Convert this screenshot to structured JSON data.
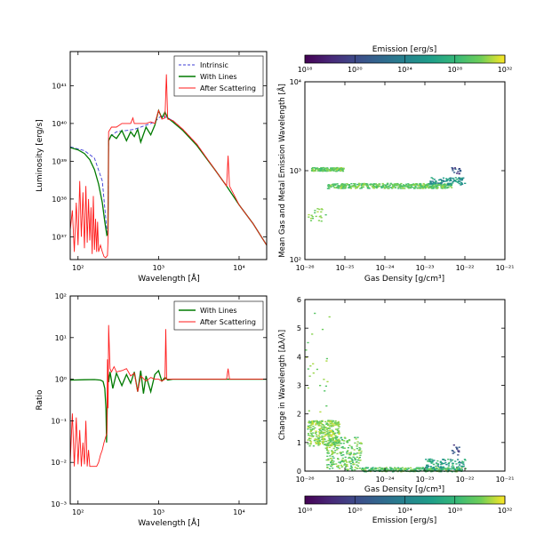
{
  "chart_data": [
    {
      "id": "luminosity",
      "type": "line",
      "xscale": "log",
      "yscale": "log",
      "xlabel": "Wavelength [Å]",
      "ylabel": "Luminosity [erg/s]",
      "xlim": [
        80,
        22000
      ],
      "ylim": [
        2.5e+36,
        8e+41
      ],
      "x_ticks": [
        {
          "v": 100,
          "label": "10²"
        },
        {
          "v": 1000,
          "label": "10³"
        },
        {
          "v": 10000,
          "label": "10⁴"
        }
      ],
      "y_ticks": [
        {
          "v": 1e+37,
          "label": "10³⁷"
        },
        {
          "v": 1e+38,
          "label": "10³⁸"
        },
        {
          "v": 1e+39,
          "label": "10³⁹"
        },
        {
          "v": 1e+40,
          "label": "10⁴⁰"
        },
        {
          "v": 1e+41,
          "label": "10⁴¹"
        }
      ],
      "legend_position": "top-right",
      "series": [
        {
          "name": "Intrinsic",
          "color": "#3b3bd6",
          "dash": true,
          "x": [
            80,
            120,
            160,
            200,
            228,
            235,
            240,
            300,
            400,
            500,
            600,
            700,
            800,
            900,
            1000,
            1100,
            1200,
            1500,
            2000,
            3000,
            5000,
            7000,
            10000,
            15000,
            22000
          ],
          "y": [
            2.4e+39,
            1.9e+39,
            1.2e+39,
            3e+38,
            1.5e+37,
            1.2e+37,
            4.2e+39,
            6e+39,
            6.5e+39,
            7e+39,
            8e+39,
            9e+39,
            1e+40,
            1.1e+40,
            1.4e+40,
            1.6e+40,
            1.5e+40,
            1.2e+40,
            7e+39,
            2.8e+39,
            6e+38,
            2.2e+38,
            7e+37,
            2.2e+37,
            6e+36
          ]
        },
        {
          "name": "With Lines",
          "color": "#007a00",
          "dash": false,
          "x": [
            80,
            100,
            120,
            140,
            160,
            180,
            200,
            215,
            228,
            235,
            240,
            260,
            300,
            350,
            400,
            450,
            500,
            550,
            600,
            700,
            800,
            900,
            1000,
            1100,
            1200,
            1300,
            1500,
            2000,
            3000,
            5000,
            7000,
            10000,
            15000,
            22000
          ],
          "y": [
            2.3e+39,
            2e+39,
            1.6e+39,
            1.1e+39,
            6e+38,
            2.5e+38,
            8e+37,
            2.5e+37,
            1.1e+37,
            1.2e+37,
            3.5e+39,
            5e+39,
            4e+39,
            6.5e+39,
            3.5e+39,
            6e+39,
            4.5e+39,
            7e+39,
            3.2e+39,
            8e+39,
            5e+39,
            9e+39,
            2.2e+40,
            1.4e+40,
            2e+40,
            1.4e+40,
            1.1e+40,
            6.5e+39,
            2.6e+39,
            6e+38,
            2.2e+38,
            7e+37,
            2.2e+37,
            6e+36
          ]
        },
        {
          "name": "After Scattering",
          "color": "#ff1a1a",
          "dash": false,
          "x": [
            80,
            85,
            90,
            95,
            100,
            105,
            110,
            115,
            120,
            125,
            130,
            135,
            140,
            145,
            150,
            155,
            160,
            165,
            170,
            175,
            180,
            190,
            200,
            210,
            220,
            232,
            236,
            240,
            260,
            300,
            350,
            400,
            450,
            480,
            500,
            550,
            600,
            700,
            800,
            900,
            1000,
            1100,
            1200,
            1250,
            1300,
            1500,
            2000,
            3000,
            5000,
            7000,
            7300,
            7600,
            10000,
            15000,
            22000
          ],
          "y": [
            1.5e+37,
            5e+37,
            4e+36,
            8e+37,
            6e+36,
            3e+38,
            1e+37,
            1.5e+38,
            5e+36,
            2.2e+38,
            7e+36,
            1e+38,
            8e+36,
            6e+37,
            3.5e+36,
            1.2e+38,
            4.5e+36,
            3e+37,
            4e+36,
            2.5e+37,
            4e+36,
            6e+36,
            4e+36,
            3e+36,
            2.8e+36,
            3.2e+36,
            9e+36,
            6e+39,
            8e+39,
            8e+39,
            1e+40,
            1e+40,
            1e+40,
            1.4e+40,
            1e+40,
            1e+40,
            1e+40,
            1e+40,
            1.1e+40,
            1e+40,
            2.2e+40,
            1.3e+40,
            1.4e+40,
            2e+41,
            1.3e+40,
            1.2e+40,
            7e+39,
            2.8e+39,
            6e+38,
            2.2e+38,
            1.4e+39,
            2.2e+38,
            7e+37,
            2.2e+37,
            6e+36
          ]
        }
      ]
    },
    {
      "id": "emission-wavelength",
      "type": "scatter",
      "xscale": "log",
      "yscale": "log",
      "xlabel": "Gas Density [g/cm³]",
      "ylabel": "Mean Gas and Metal Emission Wavelength [Å]",
      "xlim": [
        1e-26,
        1e-21
      ],
      "ylim": [
        100,
        10000
      ],
      "x_ticks": [
        {
          "v": 1e-26,
          "label": "10⁻²⁶"
        },
        {
          "v": 1e-25,
          "label": "10⁻²⁵"
        },
        {
          "v": 1e-24,
          "label": "10⁻²⁴"
        },
        {
          "v": 1e-23,
          "label": "10⁻²³"
        },
        {
          "v": 1e-22,
          "label": "10⁻²²"
        },
        {
          "v": 1e-21,
          "label": "10⁻²¹"
        }
      ],
      "y_ticks": [
        {
          "v": 100,
          "label": "10²"
        },
        {
          "v": 1000,
          "label": "10³"
        },
        {
          "v": 10000,
          "label": "10⁴"
        }
      ],
      "colorbar": {
        "label": "Emission [erg/s]",
        "position": "top",
        "range_log10": [
          16,
          32
        ],
        "ticks": [
          {
            "v": 16,
            "label": "10¹⁶"
          },
          {
            "v": 20,
            "label": "10²⁰"
          },
          {
            "v": 24,
            "label": "10²⁴"
          },
          {
            "v": 28,
            "label": "10²⁸"
          },
          {
            "v": 32,
            "label": "10³²"
          }
        ]
      },
      "clusters": [
        {
          "note": "upper band",
          "logx": [
            -25.85,
            -25.05
          ],
          "y": [
            1000,
            1100
          ],
          "emission_log10": [
            28,
            31
          ]
        },
        {
          "note": "main band",
          "logx": [
            -25.45,
            -22.35
          ],
          "y": [
            640,
            730
          ],
          "emission_log10": [
            28,
            31
          ]
        },
        {
          "note": "band rising",
          "logx": [
            -22.9,
            -22.0
          ],
          "y": [
            700,
            850
          ],
          "emission_log10": [
            23,
            28
          ]
        },
        {
          "note": "high points",
          "logx": [
            -22.35,
            -22.1
          ],
          "y": [
            930,
            1100
          ],
          "emission_log10": [
            18,
            22
          ]
        },
        {
          "note": "low scatter",
          "logx": [
            -25.95,
            -25.5
          ],
          "y": [
            270,
            380
          ],
          "emission_log10": [
            29,
            31
          ]
        }
      ]
    },
    {
      "id": "ratio",
      "type": "line",
      "xscale": "log",
      "yscale": "log",
      "xlabel": "Wavelength [Å]",
      "ylabel": "Ratio",
      "xlim": [
        80,
        22000
      ],
      "ylim": [
        0.001,
        100
      ],
      "x_ticks": [
        {
          "v": 100,
          "label": "10²"
        },
        {
          "v": 1000,
          "label": "10³"
        },
        {
          "v": 10000,
          "label": "10⁴"
        }
      ],
      "y_ticks": [
        {
          "v": 0.001,
          "label": "10⁻³"
        },
        {
          "v": 0.01,
          "label": "10⁻²"
        },
        {
          "v": 0.1,
          "label": "10⁻¹"
        },
        {
          "v": 1,
          "label": "10⁰"
        },
        {
          "v": 10,
          "label": "10¹"
        },
        {
          "v": 100,
          "label": "10²"
        }
      ],
      "legend_position": "top-right",
      "series": [
        {
          "name": "With Lines",
          "color": "#007a00",
          "dash": false,
          "x": [
            80,
            120,
            160,
            190,
            205,
            215,
            222,
            226,
            230,
            233,
            236,
            240,
            250,
            270,
            300,
            350,
            400,
            450,
            500,
            550,
            600,
            650,
            700,
            800,
            900,
            1000,
            1100,
            1200,
            1300,
            1500,
            2000,
            5000,
            22000
          ],
          "y": [
            0.95,
            0.97,
            0.98,
            0.95,
            0.88,
            0.6,
            0.2,
            0.03,
            0.2,
            0.5,
            1.3,
            0.85,
            1.5,
            0.6,
            1.4,
            0.7,
            1.3,
            0.8,
            1.5,
            0.5,
            1.6,
            0.45,
            1.2,
            0.5,
            1.3,
            1.6,
            0.9,
            1.1,
            0.95,
            1,
            1,
            1,
            1
          ]
        },
        {
          "name": "After Scattering",
          "color": "#ff1a1a",
          "dash": false,
          "x": [
            80,
            85,
            90,
            95,
            100,
            105,
            110,
            115,
            120,
            125,
            130,
            135,
            140,
            150,
            160,
            170,
            180,
            190,
            200,
            210,
            220,
            228,
            232,
            236,
            240,
            250,
            260,
            280,
            300,
            350,
            400,
            450,
            500,
            550,
            600,
            700,
            800,
            900,
            1000,
            1100,
            1200,
            1230,
            1260,
            1300,
            1500,
            2000,
            5000,
            7000,
            7300,
            7600,
            10000,
            22000
          ],
          "y": [
            0.01,
            0.15,
            0.008,
            0.12,
            0.009,
            0.06,
            0.008,
            0.03,
            0.009,
            0.1,
            0.008,
            0.02,
            0.008,
            0.008,
            0.008,
            0.008,
            0.01,
            0.015,
            0.02,
            0.03,
            0.04,
            0.05,
            3,
            0.2,
            20,
            1.8,
            1.5,
            2,
            1.5,
            1.6,
            1.8,
            1.2,
            1.4,
            0.5,
            1.2,
            0.9,
            1.1,
            1,
            1,
            0.9,
            1,
            16,
            1,
            1,
            1,
            1,
            1,
            1,
            1.8,
            1,
            1,
            1
          ]
        }
      ]
    },
    {
      "id": "wavelength-change",
      "type": "scatter",
      "xscale": "log",
      "yscale": "linear",
      "xlabel": "Gas Density [g/cm³]",
      "ylabel": "Change in Wavelength [Δλ/λ]",
      "xlim": [
        1e-26,
        1e-21
      ],
      "ylim": [
        0,
        6
      ],
      "x_ticks": [
        {
          "v": 1e-26,
          "label": "10⁻²⁶"
        },
        {
          "v": 1e-25,
          "label": "10⁻²⁵"
        },
        {
          "v": 1e-24,
          "label": "10⁻²⁴"
        },
        {
          "v": 1e-23,
          "label": "10⁻²³"
        },
        {
          "v": 1e-22,
          "label": "10⁻²²"
        },
        {
          "v": 1e-21,
          "label": "10⁻²¹"
        }
      ],
      "y_ticks": [
        {
          "v": 0,
          "label": "0"
        },
        {
          "v": 1,
          "label": "1"
        },
        {
          "v": 2,
          "label": "2"
        },
        {
          "v": 3,
          "label": "3"
        },
        {
          "v": 4,
          "label": "4"
        },
        {
          "v": 5,
          "label": "5"
        },
        {
          "v": 6,
          "label": "6"
        }
      ],
      "colorbar": {
        "label": "Emission [erg/s]",
        "position": "bottom",
        "range_log10": [
          16,
          32
        ],
        "ticks": [
          {
            "v": 16,
            "label": "10¹⁶"
          },
          {
            "v": 20,
            "label": "10²⁰"
          },
          {
            "v": 24,
            "label": "10²⁴"
          },
          {
            "v": 28,
            "label": "10²⁸"
          },
          {
            "v": 32,
            "label": "10³²"
          }
        ]
      },
      "clusters": [
        {
          "note": "dense high band",
          "logx": [
            -25.95,
            -25.15
          ],
          "y": [
            0.9,
            1.8
          ],
          "emission_log10": [
            29,
            31.5
          ]
        },
        {
          "note": "decreasing band",
          "logx": [
            -25.5,
            -24.6
          ],
          "y": [
            0.05,
            1.2
          ],
          "emission_log10": [
            28,
            31
          ]
        },
        {
          "note": "floor",
          "logx": [
            -24.6,
            -22.1
          ],
          "y": [
            0.0,
            0.15
          ],
          "emission_log10": [
            27,
            31
          ]
        },
        {
          "note": "rising tail",
          "logx": [
            -23.0,
            -22.0
          ],
          "y": [
            0.05,
            0.45
          ],
          "emission_log10": [
            23,
            29
          ]
        },
        {
          "note": "high tail",
          "logx": [
            -22.35,
            -22.1
          ],
          "y": [
            0.5,
            0.95
          ],
          "emission_log10": [
            18,
            22
          ]
        },
        {
          "note": "outliers",
          "logx": [
            -26.0,
            -25.4
          ],
          "y": [
            2.0,
            5.8
          ],
          "emission_log10": [
            29,
            31
          ]
        }
      ]
    }
  ]
}
